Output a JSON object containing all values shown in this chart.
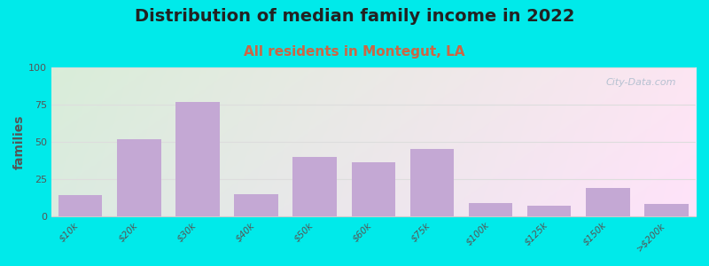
{
  "title": "Distribution of median family income in 2022",
  "subtitle": "All residents in Montegut, LA",
  "ylabel": "families",
  "categories": [
    "$10k",
    "$20k",
    "$30k",
    "$40k",
    "$50k",
    "$60k",
    "$75k",
    "$100k",
    "$125k",
    "$150k",
    ">$200k"
  ],
  "values": [
    14,
    52,
    77,
    15,
    40,
    36,
    45,
    9,
    7,
    19,
    8
  ],
  "bar_color": "#c4a8d4",
  "ylim": [
    0,
    100
  ],
  "yticks": [
    0,
    25,
    50,
    75,
    100
  ],
  "background_outer": "#00eaea",
  "title_fontsize": 14,
  "title_color": "#222222",
  "subtitle_fontsize": 11,
  "subtitle_color": "#cc6644",
  "watermark_text": "City-Data.com",
  "watermark_color": "#aabbcc",
  "ylabel_color": "#555555",
  "tick_color": "#555555",
  "grid_color": "#dddddd"
}
